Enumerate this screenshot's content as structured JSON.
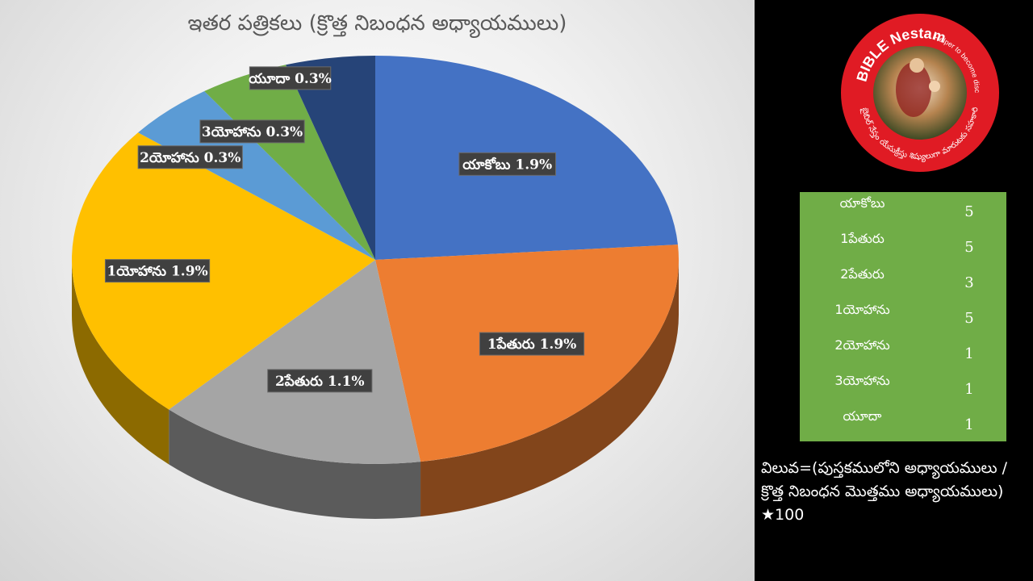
{
  "chart_data": {
    "type": "pie",
    "title": "ఇతర పత్రికలు (క్రొత్త నిబంధన అధ్యాయములు)",
    "categories": [
      "యాకోబు",
      "1పేతురు",
      "2పేతురు",
      "1యోహాను",
      "2యోహాను",
      "3యోహాను",
      "యూదా"
    ],
    "values": [
      5,
      5,
      3,
      5,
      1,
      1,
      1
    ],
    "data_labels": [
      "యాకోబు 1.9%",
      "1పేతురు 1.9%",
      "2పేతురు 1.1%",
      "1యోహాను 1.9%",
      "2యోహాను 0.3%",
      "3యోహాను 0.3%",
      "యూదా 0.3%"
    ],
    "colors": [
      "#4472c4",
      "#ed7d31",
      "#a5a5a5",
      "#ffc000",
      "#5b9bd5",
      "#70ad47",
      "#264478"
    ],
    "style": "3d-pie",
    "legend": "none"
  },
  "values_table": [
    {
      "name": "యాకోబు",
      "value": "5"
    },
    {
      "name": "1పేతురు",
      "value": "5"
    },
    {
      "name": "2పేతురు",
      "value": "3"
    },
    {
      "name": "1యోహాను",
      "value": "5"
    },
    {
      "name": "2యోహాను",
      "value": "1"
    },
    {
      "name": "3యోహాను",
      "value": "1"
    },
    {
      "name": "యూదా",
      "value": "1"
    }
  ],
  "formula": "విలువ=(పుస్తకములోని అధ్యాయములు / క్రొత్త నిబంధన మొత్తము అధ్యాయములు) ★100",
  "logo": {
    "text_top": "BIBLE Nestam",
    "text_side": "Helper to become disciple of JESUS CHRIST",
    "text_telugu": "బైబిల్ నేస్తం యేసుక్రీస్తు శిష్యులుగా మారుటకు సహకారి",
    "colors": {
      "ring": "#e01b24",
      "inner": "#ffffff"
    }
  }
}
